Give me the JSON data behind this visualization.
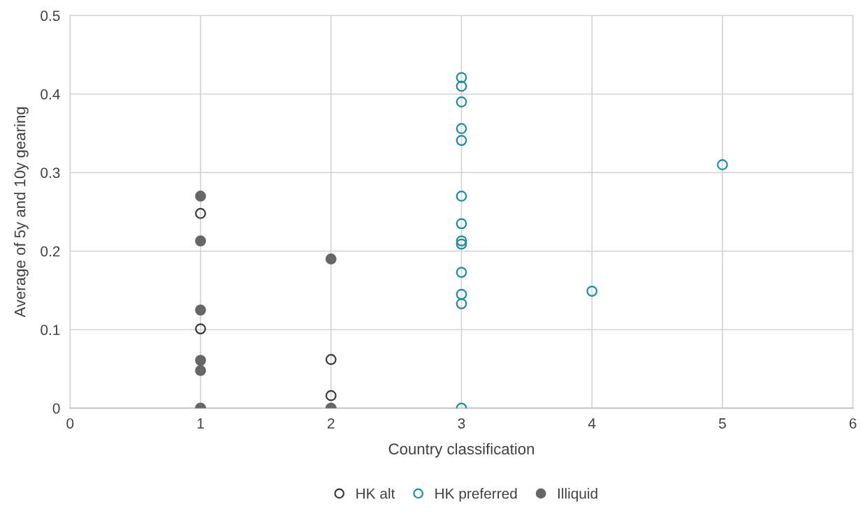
{
  "chart_data": {
    "type": "scatter",
    "xlabel": "Country classification",
    "ylabel": "Average of 5y and 10y gearing",
    "xlim": [
      0,
      6
    ],
    "xticks": [
      0,
      1,
      2,
      3,
      4,
      5,
      6
    ],
    "ylim": [
      0,
      0.5
    ],
    "yticks": [
      0,
      0.1,
      0.2,
      0.3,
      0.4,
      0.5
    ],
    "grid": true,
    "legend": "bottom",
    "marker": "circle",
    "series": [
      {
        "name": "HK alt",
        "color": "#3a3a3a",
        "x": [
          1,
          1,
          2,
          2
        ],
        "values": [
          0.248,
          0.101,
          0.062,
          0.016
        ]
      },
      {
        "name": "HK preferred",
        "color": "#1b8fa0",
        "x": [
          3,
          3,
          3,
          3,
          3,
          3,
          3,
          3,
          3,
          3,
          3,
          3,
          3,
          4,
          5
        ],
        "values": [
          0.421,
          0.41,
          0.39,
          0.356,
          0.341,
          0.27,
          0.235,
          0.213,
          0.209,
          0.173,
          0.145,
          0.133,
          0,
          0.149,
          0.31
        ]
      },
      {
        "name": "Illiquid",
        "color": "#666666",
        "x": [
          1,
          1,
          1,
          1,
          1,
          1,
          2,
          2
        ],
        "values": [
          0.27,
          0.213,
          0.125,
          0.061,
          0.048,
          0,
          0.19,
          0
        ]
      }
    ]
  }
}
